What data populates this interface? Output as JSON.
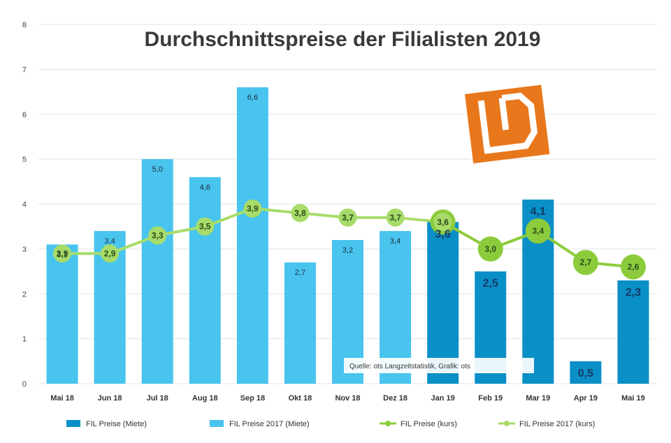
{
  "chart_data": {
    "type": "bar",
    "title": "Durchschnittspreise der Filialisten 2019",
    "categories": [
      "Mai 18",
      "Jun 18",
      "Jul 18",
      "Aug 18",
      "Sep 18",
      "Okt 18",
      "Nov 18",
      "Dez 18",
      "Jan 19",
      "Feb 19",
      "Mar 19",
      "Apr 19",
      "Mai 19"
    ],
    "ylim": [
      0,
      8
    ],
    "yticks": [
      "0",
      "1",
      "2",
      "3",
      "4",
      "5",
      "6",
      "7",
      "8"
    ],
    "grid": true,
    "legend_position": "bottom",
    "series": [
      {
        "name": "FIL Preise (Miete)",
        "kind": "bar",
        "color": "#0a8fc6",
        "values": [
          null,
          null,
          null,
          null,
          null,
          null,
          null,
          null,
          3.6,
          2.5,
          4.1,
          0.5,
          2.3
        ],
        "labels": [
          "",
          "",
          "",
          "",
          "",
          "",
          "",
          "",
          "3,6",
          "2,5",
          "4,1",
          "0,5",
          "2,3"
        ]
      },
      {
        "name": "FIL Preise 2017 (Miete)",
        "kind": "bar",
        "color": "#48c4ee",
        "values": [
          3.1,
          3.4,
          5.0,
          4.6,
          6.6,
          2.7,
          3.2,
          3.4,
          null,
          null,
          null,
          null,
          null
        ],
        "labels": [
          "3,1",
          "3,4",
          "5,0",
          "4,6",
          "6,6",
          "2,7",
          "3,2",
          "3,4",
          "",
          "",
          "",
          "",
          ""
        ]
      },
      {
        "name": "FIL Preise (kurs)",
        "kind": "line",
        "color": "#8ccc3c",
        "values": [
          null,
          null,
          null,
          null,
          null,
          null,
          null,
          null,
          3.6,
          3.0,
          3.4,
          2.7,
          2.6
        ],
        "labels": [
          "",
          "",
          "",
          "",
          "",
          "",
          "",
          "",
          "3,6",
          "3,0",
          "3,4",
          "2,7",
          "2,6"
        ]
      },
      {
        "name": "FIL Preise 2017 (kurs)",
        "kind": "line",
        "color": "#a8dc6a",
        "values": [
          2.9,
          2.9,
          3.3,
          3.5,
          3.9,
          3.8,
          3.7,
          3.7,
          3.6,
          null,
          null,
          null,
          null
        ],
        "labels": [
          "2,9",
          "2,9",
          "3,3",
          "3,5",
          "3,9",
          "3,8",
          "3,7",
          "3,7",
          "",
          "",
          "",
          "",
          ""
        ]
      }
    ]
  },
  "note": "Quelle: ots Langzeitstatistik, Grafik: ots",
  "logo": {
    "name": "LD-logo",
    "color": "#e8771c"
  }
}
